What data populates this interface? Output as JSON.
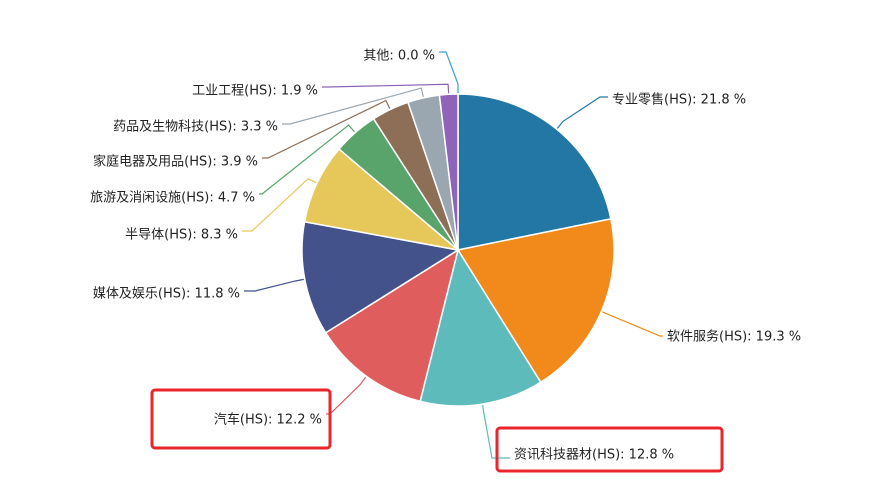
{
  "chart_data": {
    "type": "pie",
    "title": "",
    "start_angle_deg": 90,
    "direction": "clockwise",
    "categories": [
      "专业零售(HS)",
      "软件服务(HS)",
      "资讯科技器材(HS)",
      "汽车(HS)",
      "媒体及娱乐(HS)",
      "半导体(HS)",
      "旅游及消闲设施(HS)",
      "家庭电器及用品(HS)",
      "药品及生物科技(HS)",
      "工业工程(HS)",
      "其他"
    ],
    "values": [
      21.8,
      19.3,
      12.8,
      12.2,
      11.8,
      8.3,
      4.7,
      3.9,
      3.3,
      1.9,
      0.0
    ],
    "colors": [
      "#2377a4",
      "#f28a1b",
      "#5dbcbb",
      "#e05d5d",
      "#44528c",
      "#e6c85a",
      "#58a46a",
      "#8d6f57",
      "#9aa6b0",
      "#8e63b8",
      "#3a9fd6"
    ],
    "slice_labels": [
      "专业零售(HS): 21.8 %",
      "软件服务(HS): 19.3 %",
      "资讯科技器材(HS): 12.8 %",
      "汽车(HS): 12.2 %",
      "媒体及娱乐(HS): 11.8 %",
      "半导体(HS): 8.3 %",
      "旅游及消闲设施(HS): 4.7 %",
      "家庭电器及用品(HS): 3.9 %",
      "药品及生物科技(HS): 3.3 %",
      "工业工程(HS): 1.9 %",
      "其他: 0.0 %"
    ],
    "highlighted": [
      "汽车(HS)",
      "资讯科技器材(HS)"
    ],
    "highlight_color": "#e8262b",
    "legend": "none"
  }
}
